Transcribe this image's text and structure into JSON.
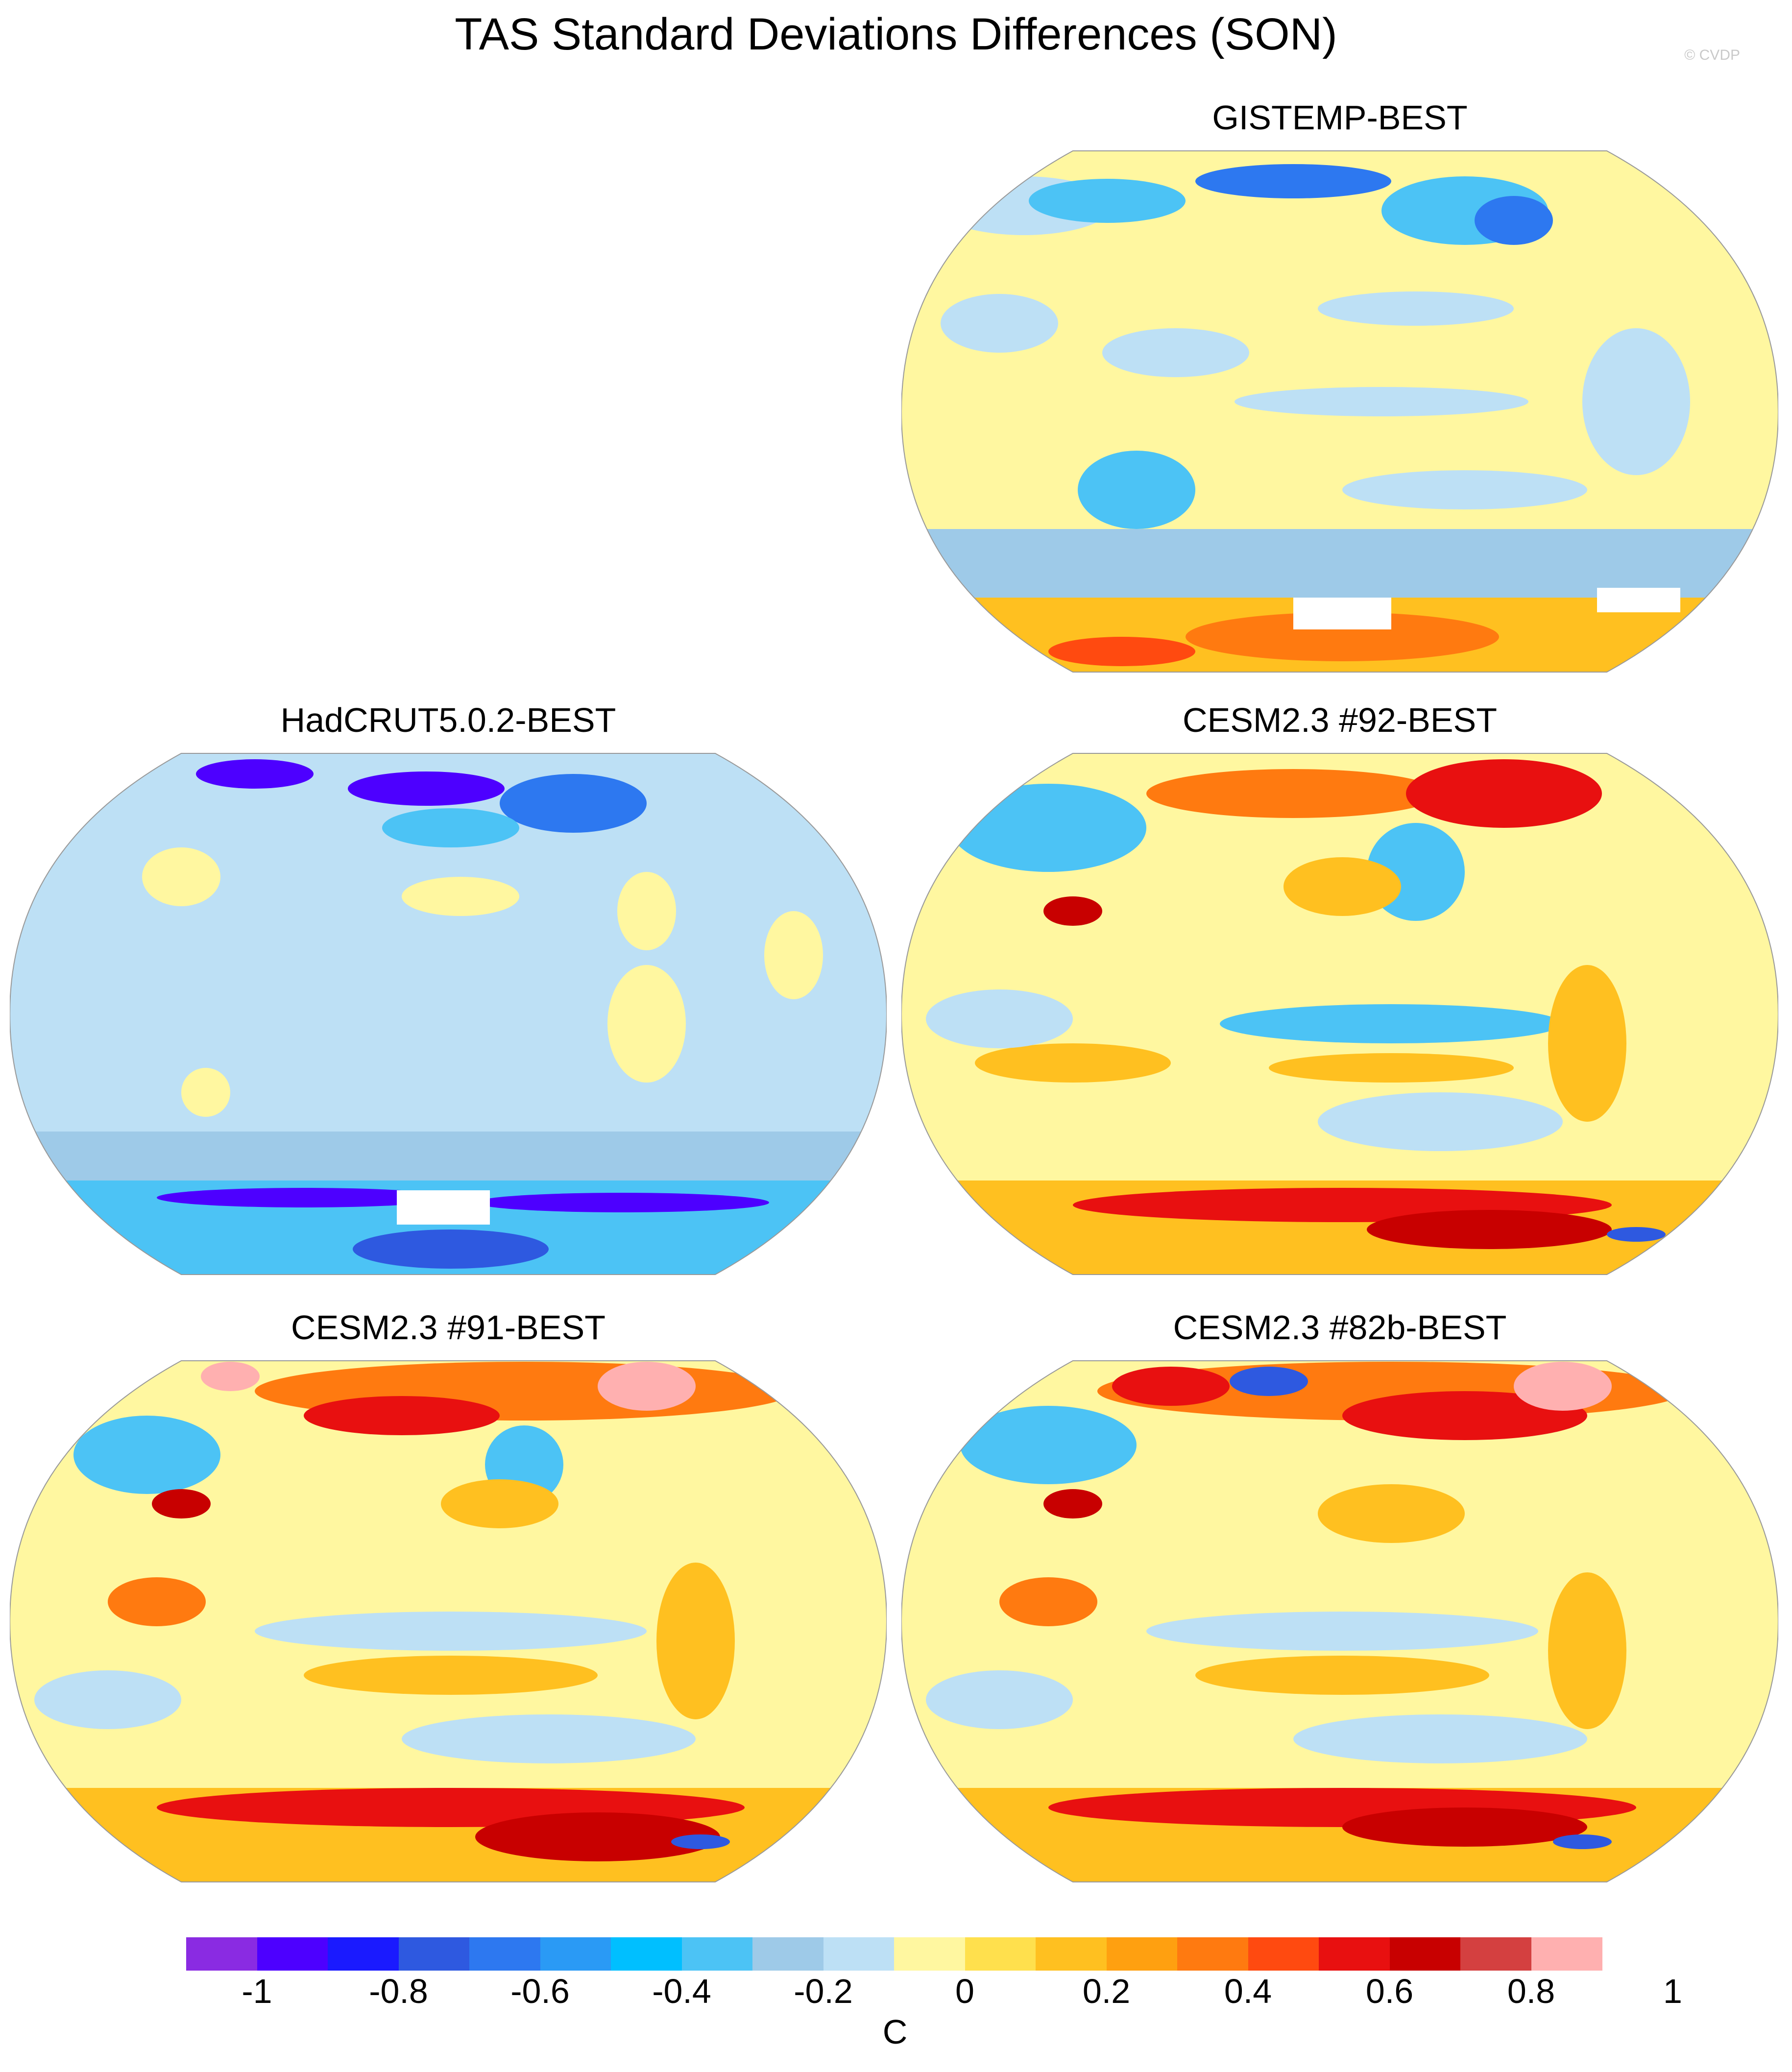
{
  "title": "TAS Standard Deviations Differences (SON)",
  "watermark": "© CVDP",
  "panels": [
    {
      "name": "GISTEMP-BEST"
    },
    {
      "name": "HadCRUT5.0.2-BEST"
    },
    {
      "name": "CESM2.3 #92-BEST"
    },
    {
      "name": "CESM2.3 #91-BEST"
    },
    {
      "name": "CESM2.3 #82b-BEST"
    }
  ],
  "colorbar": {
    "units": "C",
    "tick_labels": [
      "-1",
      "-0.8",
      "-0.6",
      "-0.4",
      "-0.2",
      "0",
      "0.2",
      "0.4",
      "0.6",
      "0.8",
      "1"
    ],
    "colors": [
      "#8a2be2",
      "#4d00ff",
      "#1a1aff",
      "#2e59e0",
      "#2d78f0",
      "#2a9af5",
      "#00bfff",
      "#4cc3f5",
      "#9ecae8",
      "#bde0f5",
      "#fff7a0",
      "#ffe04d",
      "#ffc020",
      "#ffa010",
      "#ff7a10",
      "#ff4a10",
      "#e81010",
      "#c80000",
      "#d44040",
      "#ffb0b0"
    ]
  }
}
